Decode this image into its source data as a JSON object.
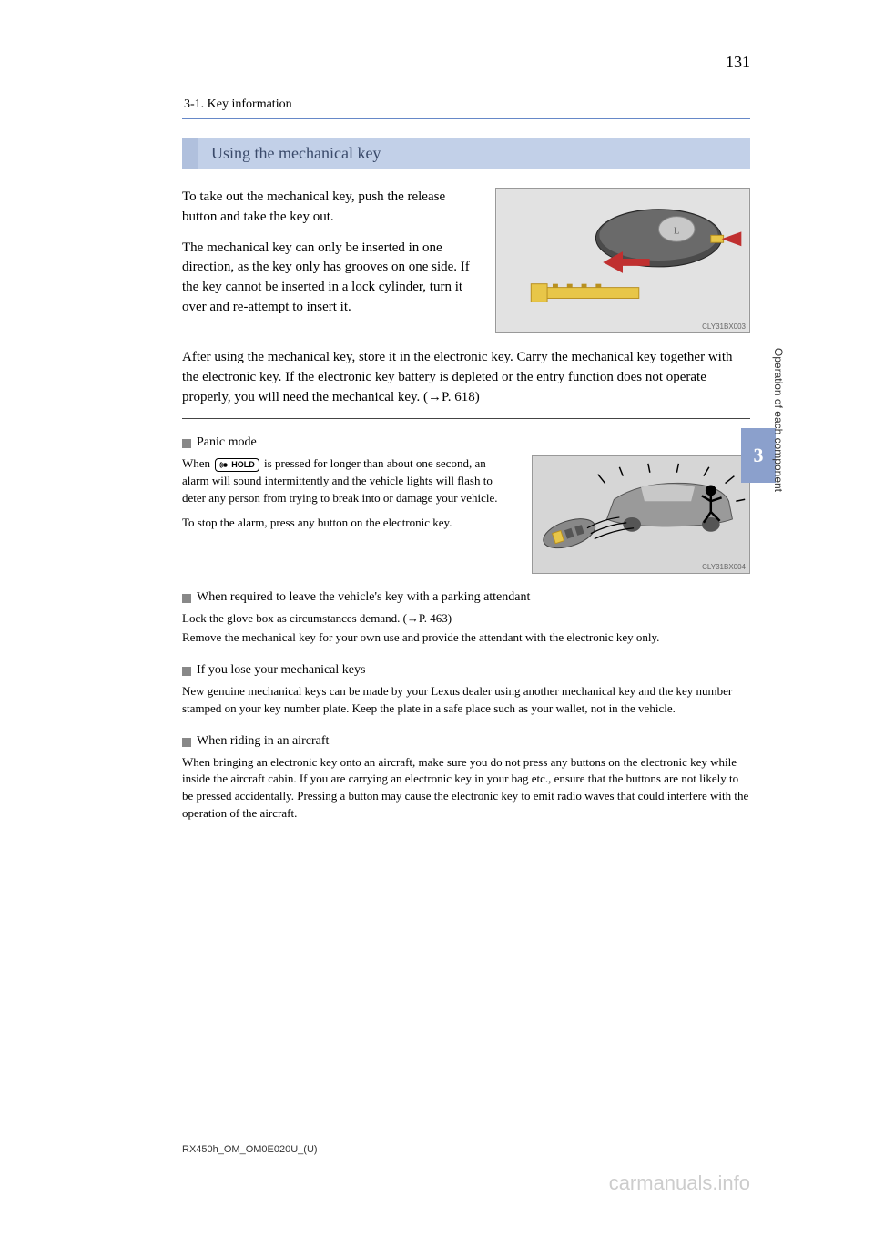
{
  "page": {
    "number": "131",
    "breadcrumb": "3-1. Key information",
    "side_tab_number": "3",
    "side_tab_label": "Operation of each component",
    "doc_code": "RX450h_OM_OM0E020U_(U)",
    "watermark": "carmanuals.info"
  },
  "section": {
    "heading": "Using the mechanical key",
    "para1": "To take out the mechanical key, push the release button and take the key out.",
    "para2": "The mechanical key can only be inserted in one direction, as the key only has grooves on one side. If the key cannot be inserted in a lock cylinder, turn it over and re-attempt to insert it.",
    "para3": "After using the mechanical key, store it in the electronic key. Carry the mechanical key together with the electronic key. If the electronic key battery is depleted or the entry function does not operate properly, you will need the mechanical key. (→P. 618)",
    "img1_code": "CLY31BX003"
  },
  "panic": {
    "heading": "Panic mode",
    "body1_a": "When ",
    "body1_b": " is pressed for longer than about one second, an alarm will sound intermittently and the vehicle lights will flash to deter any person from trying to break into or damage your vehicle.",
    "body2": "To stop the alarm, press any button on the electronic key.",
    "icon_label": "HOLD",
    "img_code": "CLY31BX004"
  },
  "blocks": [
    {
      "heading": "When required to leave the vehicle's key with a parking attendant",
      "body": "Lock the glove box as circumstances demand. (→P. 463)\nRemove the mechanical key for your own use and provide the attendant with the electronic key only."
    },
    {
      "heading": "If you lose your mechanical keys",
      "body": "New genuine mechanical keys can be made by your Lexus dealer using another mechanical key and the key number stamped on your key number plate. Keep the plate in a safe place such as your wallet, not in the vehicle."
    },
    {
      "heading": "When riding in an aircraft",
      "body": "When bringing an electronic key onto an aircraft, make sure you do not press any buttons on the electronic key while inside the aircraft cabin. If you are carrying an electronic key in your bag etc., ensure that the buttons are not likely to be pressed accidentally. Pressing a button may cause the electronic key to emit radio waves that could interfere with the operation of the aircraft."
    }
  ],
  "colors": {
    "heading_bg": "#c2d0e8",
    "heading_border": "#b0c0dd",
    "heading_text": "#3a4a6a",
    "rule": "#6688c8",
    "tab_bg": "#8ba0cc",
    "bullet": "#888888",
    "watermark": "#cccccc"
  }
}
